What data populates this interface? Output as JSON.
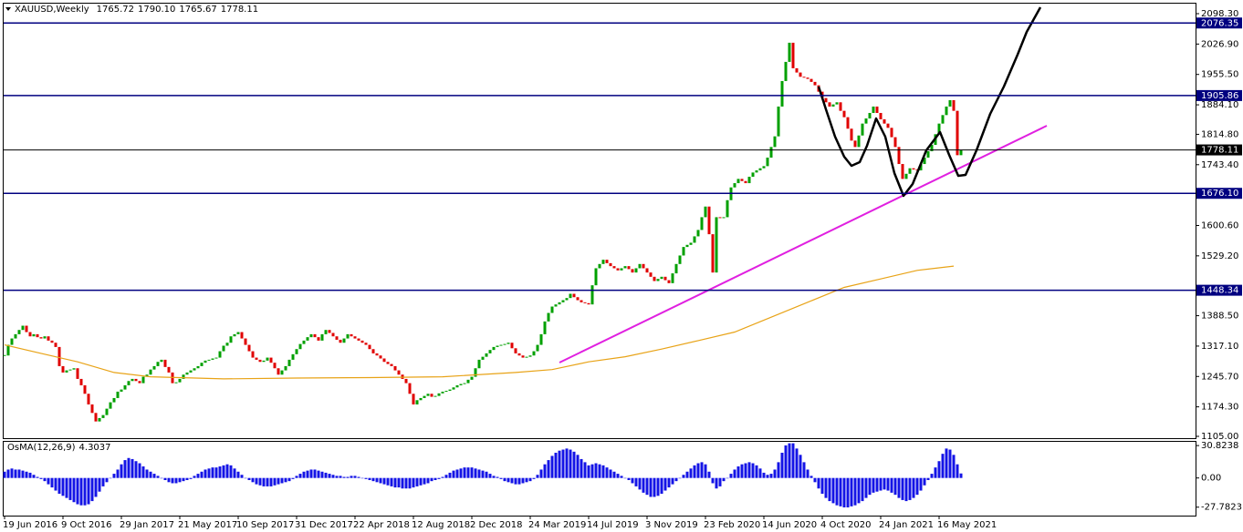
{
  "chart_data": [
    {
      "type": "candlestick",
      "title": "XAUUSD,Weekly",
      "last_high": {
        "value": 1790.1,
        "label": "1790.10"
      },
      "last_low": 1765.67,
      "up_color": "#00a000",
      "down_color": "#e00000",
      "values": [
        1295,
        1320,
        1335,
        1345,
        1355,
        1365,
        1350,
        1340,
        1345,
        1338,
        1335,
        1340,
        1330,
        1325,
        1315,
        1270,
        1255,
        1260,
        1262,
        1265,
        1240,
        1225,
        1205,
        1180,
        1160,
        1140,
        1148,
        1155,
        1170,
        1185,
        1195,
        1210,
        1215,
        1225,
        1235,
        1240,
        1235,
        1230,
        1245,
        1250,
        1262,
        1270,
        1280,
        1285,
        1268,
        1255,
        1230,
        1232,
        1240,
        1250,
        1255,
        1260,
        1265,
        1270,
        1278,
        1283,
        1285,
        1288,
        1290,
        1305,
        1318,
        1325,
        1340,
        1345,
        1350,
        1335,
        1320,
        1305,
        1290,
        1285,
        1280,
        1283,
        1290,
        1278,
        1265,
        1250,
        1260,
        1270,
        1285,
        1298,
        1310,
        1322,
        1330,
        1338,
        1345,
        1338,
        1330,
        1345,
        1355,
        1348,
        1340,
        1332,
        1325,
        1335,
        1345,
        1340,
        1335,
        1330,
        1325,
        1320,
        1310,
        1300,
        1295,
        1288,
        1280,
        1275,
        1270,
        1260,
        1250,
        1240,
        1230,
        1205,
        1180,
        1190,
        1195,
        1200,
        1205,
        1198,
        1200,
        1206,
        1210,
        1212,
        1215,
        1220,
        1225,
        1228,
        1230,
        1238,
        1245,
        1265,
        1285,
        1292,
        1300,
        1308,
        1315,
        1318,
        1320,
        1322,
        1325,
        1312,
        1300,
        1295,
        1290,
        1292,
        1295,
        1305,
        1320,
        1345,
        1375,
        1395,
        1410,
        1415,
        1420,
        1425,
        1430,
        1440,
        1432,
        1425,
        1420,
        1418,
        1415,
        1460,
        1500,
        1510,
        1520,
        1512,
        1505,
        1500,
        1495,
        1500,
        1505,
        1498,
        1490,
        1500,
        1510,
        1500,
        1490,
        1480,
        1470,
        1475,
        1480,
        1472,
        1465,
        1488,
        1510,
        1530,
        1550,
        1555,
        1560,
        1575,
        1590,
        1620,
        1645,
        1580,
        1490,
        1620,
        1618,
        1620,
        1660,
        1690,
        1700,
        1710,
        1705,
        1700,
        1715,
        1725,
        1730,
        1735,
        1740,
        1760,
        1785,
        1810,
        1880,
        1940,
        1985,
        2030,
        1970,
        1960,
        1950,
        1948,
        1945,
        1938,
        1930,
        1915,
        1900,
        1890,
        1880,
        1885,
        1890,
        1870,
        1855,
        1828,
        1800,
        1785,
        1812,
        1840,
        1852,
        1865,
        1880,
        1865,
        1850,
        1840,
        1830,
        1808,
        1785,
        1745,
        1710,
        1722,
        1735,
        1732,
        1730,
        1745,
        1760,
        1775,
        1790,
        1815,
        1840,
        1860,
        1880,
        1895,
        1870,
        1765.72,
        1778.11
      ],
      "ma": {
        "color": "#e8a317",
        "x": [
          0,
          10,
          20,
          30,
          40,
          60,
          80,
          100,
          120,
          140,
          150,
          160,
          170,
          180,
          190,
          200,
          210,
          220,
          230,
          240,
          250,
          260
        ],
        "values": [
          1320,
          1300,
          1280,
          1255,
          1245,
          1240,
          1242,
          1243,
          1245,
          1255,
          1262,
          1280,
          1292,
          1310,
          1330,
          1350,
          1385,
          1420,
          1455,
          1475,
          1495,
          1505
        ]
      },
      "levels": {
        "color": "#000080",
        "values": [
          2076.35,
          1905.86,
          {
            "value": 1676.1,
            "label": "1676.10"
          },
          1448.34
        ]
      },
      "current_color": "#000000",
      "ylim": [
        1100.7,
        2124
      ],
      "yticks": [
        {
          "value": 2098.3,
          "label": "2098.30"
        },
        {
          "value": 2026.9,
          "label": "2026.90"
        },
        {
          "value": 1955.5,
          "label": "1955.50"
        },
        {
          "value": 1884.1,
          "label": "1884.10"
        },
        {
          "value": 1814.8,
          "label": "1814.80"
        },
        {
          "value": 1743.4,
          "label": "1743.40"
        },
        {
          "value": 1600.6,
          "label": "1600.60"
        },
        {
          "value": 1529.2,
          "label": "1529.20"
        },
        {
          "value": 1388.5,
          "label": "1388.50"
        },
        {
          "value": 1317.1,
          "label": "1317.10"
        },
        {
          "value": 1245.7,
          "label": "1245.70"
        },
        {
          "value": 1174.3,
          "label": "1174.30"
        },
        {
          "value": 1105,
          "label": "1105.00"
        }
      ],
      "xlim": [
        -0.5,
        326.25
      ],
      "xticks": [
        {
          "value": 0,
          "label": "19 Jun 2016"
        },
        {
          "value": 16,
          "label": "9 Oct 2016"
        },
        {
          "value": 32,
          "label": "29 Jan 2017"
        },
        {
          "value": 48,
          "label": "21 May 2017"
        },
        {
          "value": 64,
          "label": "10 Sep 2017"
        },
        {
          "value": 80,
          "label": "31 Dec 2017"
        },
        {
          "value": 96,
          "label": "22 Apr 2018"
        },
        {
          "value": 112,
          "label": "12 Aug 2018"
        },
        {
          "value": 128,
          "label": "2 Dec 2018"
        },
        {
          "value": 144,
          "label": "24 Mar 2019"
        },
        {
          "value": 160,
          "label": "14 Jul 2019"
        },
        {
          "value": 176,
          "label": "3 Nov 2019"
        },
        {
          "value": 192,
          "label": "23 Feb 2020"
        },
        {
          "value": 208,
          "label": "14 Jun 2020"
        },
        {
          "value": 224,
          "label": "4 Oct 2020"
        },
        {
          "value": 240,
          "label": "24 Jan 2021"
        },
        {
          "value": 256,
          "label": "16 May 2021"
        }
      ]
    },
    {
      "type": "bar",
      "title": "OsMA(12,26,9)",
      "color": "#1414e6",
      "values": [
        6,
        8,
        9,
        8,
        8,
        7,
        6,
        5,
        3,
        1,
        -1,
        -3,
        -6,
        -9,
        -12,
        -15,
        -17,
        -19,
        -21,
        -23,
        -25,
        -26,
        -26,
        -25,
        -22,
        -18,
        -13,
        -8,
        -4,
        0,
        4,
        8,
        13,
        17,
        19,
        18,
        16,
        14,
        11,
        8,
        6,
        4,
        2,
        0,
        -2,
        -4,
        -5,
        -5,
        -4,
        -3,
        -2,
        -1,
        2,
        4,
        6,
        8,
        9,
        10,
        10,
        11,
        12,
        13,
        12,
        9,
        6,
        3,
        0,
        -2,
        -4,
        -6,
        -7,
        -8,
        -8,
        -8,
        -7,
        -6,
        -5,
        -4,
        -3,
        -1,
        2,
        4,
        6,
        7,
        8,
        8,
        7,
        6,
        5,
        4,
        3,
        2,
        2,
        1,
        1,
        2,
        2,
        1,
        0,
        -1,
        -2,
        -3,
        -4,
        -5,
        -6,
        -7,
        -8,
        -9,
        -9,
        -10,
        -10,
        -10,
        -9,
        -8,
        -7,
        -6,
        -5,
        -3,
        -2,
        -1,
        1,
        3,
        5,
        7,
        8,
        9,
        10,
        10,
        10,
        9,
        8,
        7,
        6,
        4,
        2,
        1,
        -1,
        -3,
        -4,
        -5,
        -6,
        -6,
        -5,
        -4,
        -3,
        -1,
        3,
        8,
        13,
        17,
        21,
        24,
        26,
        27,
        28,
        27,
        25,
        22,
        18,
        15,
        12,
        13,
        14,
        13,
        12,
        10,
        8,
        6,
        4,
        2,
        0,
        -2,
        -5,
        -8,
        -11,
        -14,
        -16,
        -18,
        -18,
        -17,
        -15,
        -12,
        -9,
        -6,
        -3,
        0,
        3,
        6,
        9,
        12,
        14,
        15,
        13,
        6,
        -5,
        -10,
        -8,
        -3,
        0,
        4,
        8,
        11,
        13,
        14,
        15,
        14,
        12,
        9,
        5,
        3,
        4,
        8,
        15,
        24,
        31,
        33,
        33,
        28,
        22,
        15,
        8,
        2,
        -4,
        -10,
        -15,
        -19,
        -22,
        -24,
        -26,
        -27,
        -28,
        -28,
        -27,
        -26,
        -24,
        -22,
        -19,
        -16,
        -14,
        -13,
        -12,
        -11,
        -12,
        -14,
        -16,
        -19,
        -21,
        -22,
        -21,
        -19,
        -16,
        -12,
        -7,
        -2,
        4,
        10,
        16,
        23,
        28,
        27,
        22,
        13,
        4.3037
      ],
      "ylim": [
        -35.8,
        34.4
      ],
      "yticks": [
        30.8238,
        {
          "value": 0,
          "label": "0.00"
        },
        -27.7823
      ]
    }
  ]
}
